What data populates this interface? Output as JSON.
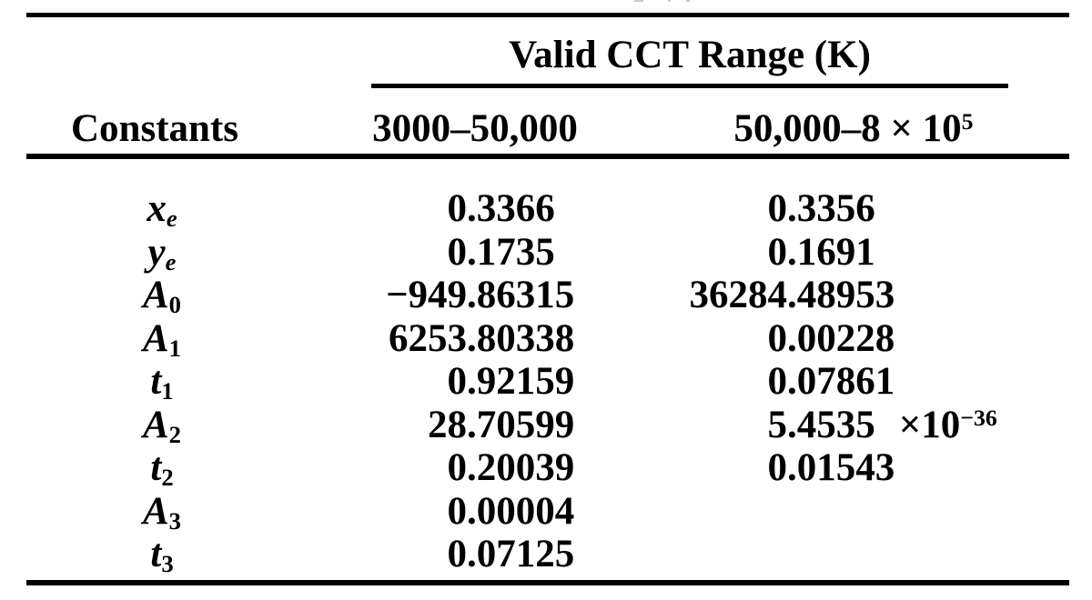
{
  "table": {
    "spanner": "Valid CCT Range (K)",
    "columns": {
      "constants": "Constants",
      "range1": "3000–50,000",
      "range2_base": "50,000–8 × 10",
      "range2_exp": "5"
    },
    "notation": {
      "times_ten": "×10"
    },
    "rows": [
      {
        "sym": "x",
        "sub": "e",
        "v1": "0.3366",
        "v2": "0.3356"
      },
      {
        "sym": "y",
        "sub": "e",
        "v1": "0.1735",
        "v2": "0.1691"
      },
      {
        "sym": "A",
        "sub": "0",
        "v1": "−949.86315",
        "v2": "36284.48953"
      },
      {
        "sym": "A",
        "sub": "1",
        "v1": "6253.80338",
        "v2": "0.00228"
      },
      {
        "sym": "t",
        "sub": "1",
        "v1": "0.92159",
        "v2": "0.07861"
      },
      {
        "sym": "A",
        "sub": "2",
        "v1": "28.70599",
        "v2": "5.4535",
        "v2_exp": "−36"
      },
      {
        "sym": "t",
        "sub": "2",
        "v1": "0.20039",
        "v2": "0.01543"
      },
      {
        "sym": "A",
        "sub": "3",
        "v1": "0.00004",
        "v2": ""
      },
      {
        "sym": "t",
        "sub": "3",
        "v1": "0.07125",
        "v2": ""
      }
    ]
  },
  "colors": {
    "text": "#000000",
    "background": "#ffffff",
    "rule": "#000000"
  }
}
